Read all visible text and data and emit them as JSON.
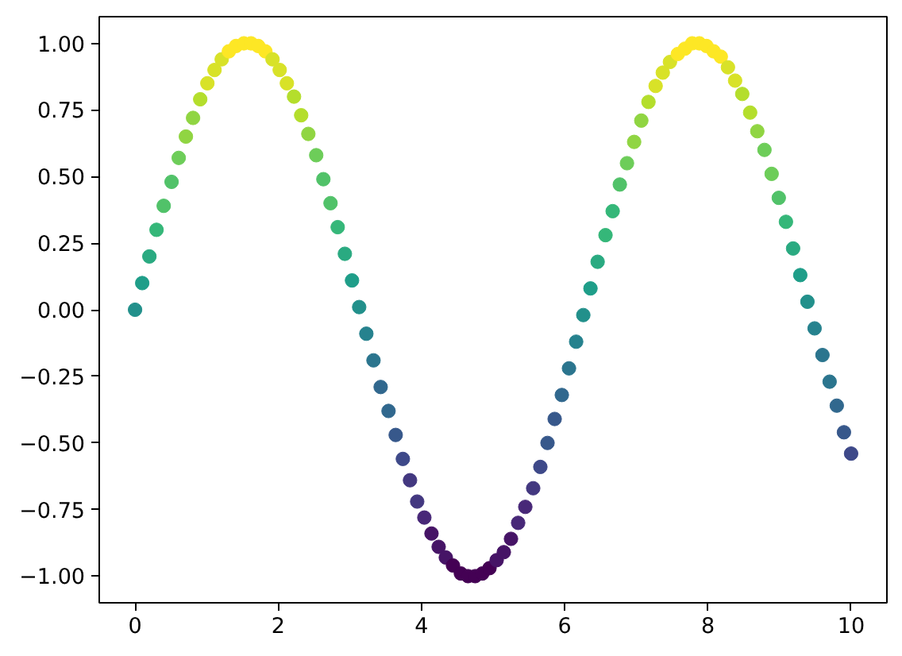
{
  "chart_data": {
    "type": "scatter",
    "marker": "circle",
    "grid": false,
    "xlim": [
      -0.5,
      10.5
    ],
    "ylim": [
      -1.1,
      1.1
    ],
    "xticks": [
      0,
      2,
      4,
      6,
      8,
      10
    ],
    "yticks": [
      {
        "value": -1,
        "label": "−1.00"
      },
      {
        "value": -0.75,
        "label": "−0.75"
      },
      {
        "value": -0.5,
        "label": "−0.50"
      },
      {
        "value": -0.25,
        "label": "−0.25"
      },
      {
        "value": 0,
        "label": "0.00"
      },
      {
        "value": 0.25,
        "label": "0.25"
      },
      {
        "value": 0.5,
        "label": "0.50"
      },
      {
        "value": 0.75,
        "label": "0.75"
      },
      {
        "value": 1,
        "label": "1.00"
      }
    ],
    "x": [
      0.0,
      0.1,
      0.2,
      0.3,
      0.4,
      0.51,
      0.61,
      0.71,
      0.81,
      0.91,
      1.01,
      1.11,
      1.21,
      1.31,
      1.41,
      1.52,
      1.62,
      1.72,
      1.82,
      1.92,
      2.02,
      2.12,
      2.22,
      2.32,
      2.42,
      2.53,
      2.63,
      2.73,
      2.83,
      2.93,
      3.03,
      3.13,
      3.23,
      3.33,
      3.43,
      3.54,
      3.64,
      3.74,
      3.84,
      3.94,
      4.04,
      4.14,
      4.24,
      4.34,
      4.44,
      4.55,
      4.65,
      4.75,
      4.85,
      4.95,
      5.05,
      5.15,
      5.25,
      5.35,
      5.45,
      5.56,
      5.66,
      5.76,
      5.86,
      5.96,
      6.06,
      6.16,
      6.26,
      6.36,
      6.46,
      6.57,
      6.67,
      6.77,
      6.87,
      6.97,
      7.07,
      7.17,
      7.27,
      7.37,
      7.47,
      7.58,
      7.68,
      7.78,
      7.88,
      7.98,
      8.08,
      8.18,
      8.28,
      8.38,
      8.48,
      8.59,
      8.69,
      8.79,
      8.89,
      8.99,
      9.09,
      9.19,
      9.29,
      9.39,
      9.49,
      9.6,
      9.7,
      9.8,
      9.9,
      10.0
    ],
    "values": [
      0.0,
      0.1,
      0.2,
      0.3,
      0.39,
      0.48,
      0.57,
      0.65,
      0.72,
      0.79,
      0.85,
      0.9,
      0.94,
      0.97,
      0.99,
      1.0,
      1.0,
      0.99,
      0.97,
      0.94,
      0.9,
      0.85,
      0.8,
      0.73,
      0.66,
      0.58,
      0.49,
      0.4,
      0.31,
      0.21,
      0.11,
      0.01,
      -0.09,
      -0.19,
      -0.29,
      -0.38,
      -0.47,
      -0.56,
      -0.64,
      -0.72,
      -0.78,
      -0.84,
      -0.89,
      -0.93,
      -0.96,
      -0.99,
      -1.0,
      -1.0,
      -0.99,
      -0.97,
      -0.94,
      -0.91,
      -0.86,
      -0.8,
      -0.74,
      -0.67,
      -0.59,
      -0.5,
      -0.41,
      -0.32,
      -0.22,
      -0.12,
      -0.02,
      0.08,
      0.18,
      0.28,
      0.37,
      0.47,
      0.55,
      0.63,
      0.71,
      0.78,
      0.84,
      0.89,
      0.93,
      0.96,
      0.98,
      1.0,
      1.0,
      0.99,
      0.97,
      0.95,
      0.91,
      0.86,
      0.81,
      0.74,
      0.67,
      0.6,
      0.51,
      0.42,
      0.33,
      0.23,
      0.13,
      0.03,
      -0.07,
      -0.17,
      -0.27,
      -0.36,
      -0.46,
      -0.54
    ],
    "colors": [
      "#22908b",
      "#1f9e89",
      "#2aaa81",
      "#35b779",
      "#51c269",
      "#51c269",
      "#6dcd59",
      "#90d542",
      "#90d542",
      "#b4de2c",
      "#d8e228",
      "#d8e228",
      "#d8e228",
      "#fde725",
      "#fde725",
      "#fde725",
      "#fde725",
      "#fde725",
      "#fde725",
      "#d8e228",
      "#d8e228",
      "#d8e228",
      "#b4de2c",
      "#b4de2c",
      "#90d542",
      "#6dcd59",
      "#51c269",
      "#51c269",
      "#35b779",
      "#2aaa81",
      "#1f9e89",
      "#22908b",
      "#26828e",
      "#2b758e",
      "#31688e",
      "#31688e",
      "#37588b",
      "#3e4989",
      "#433880",
      "#433880",
      "#482878",
      "#461466",
      "#461466",
      "#461466",
      "#440154",
      "#440154",
      "#440154",
      "#440154",
      "#440154",
      "#440154",
      "#461466",
      "#461466",
      "#461466",
      "#482878",
      "#482878",
      "#433880",
      "#3e4989",
      "#37588b",
      "#37588b",
      "#31688e",
      "#2b758e",
      "#26828e",
      "#22908b",
      "#1f9e89",
      "#2aaa81",
      "#35b779",
      "#35b779",
      "#51c269",
      "#6dcd59",
      "#90d542",
      "#90d542",
      "#b4de2c",
      "#d8e228",
      "#d8e228",
      "#d8e228",
      "#fde725",
      "#fde725",
      "#fde725",
      "#fde725",
      "#fde725",
      "#fde725",
      "#fde725",
      "#d8e228",
      "#d8e228",
      "#b4de2c",
      "#b4de2c",
      "#90d542",
      "#6dcd59",
      "#6dcd59",
      "#51c269",
      "#35b779",
      "#2aaa81",
      "#1f9e89",
      "#22908b",
      "#26828e",
      "#2b758e",
      "#2b758e",
      "#31688e",
      "#37588b",
      "#3e4989"
    ]
  }
}
